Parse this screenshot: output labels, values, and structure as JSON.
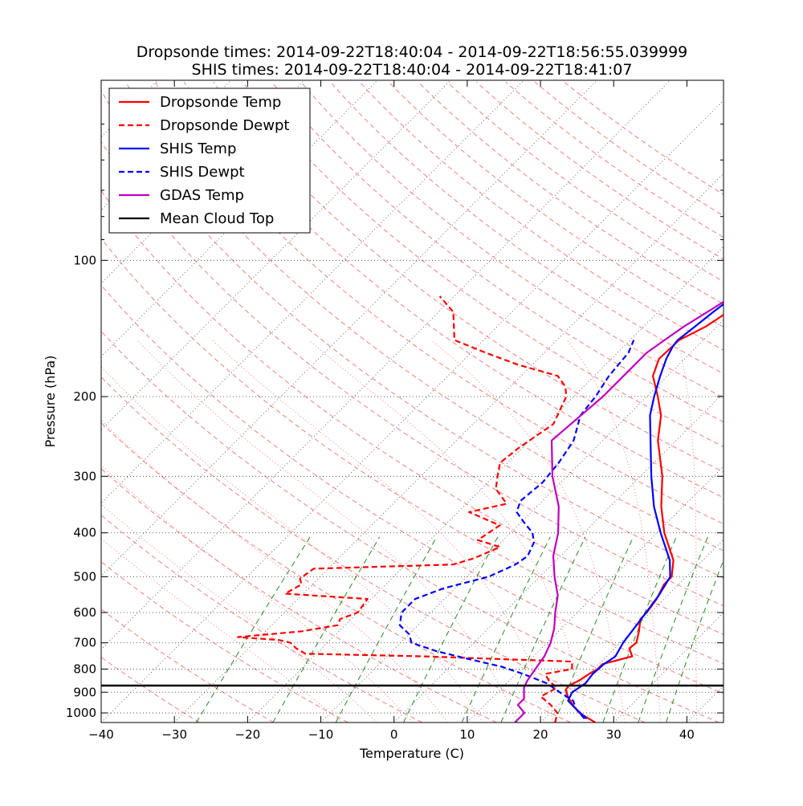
{
  "chart_data": {
    "type": "line",
    "subtype": "skew-t log-p",
    "title": "Dropsonde times: 2014-09-22T18:40:04 - 2014-09-22T18:56:55.039999",
    "subtitle": "SHIS times: 2014-09-22T18:40:04 - 2014-09-22T18:41:07",
    "xlabel": "Temperature (C)",
    "ylabel": "Pressure (hPa)",
    "xlim": [
      -40,
      45
    ],
    "ylim": [
      1050,
      40
    ],
    "x_ticks": [
      -40,
      -30,
      -20,
      -10,
      0,
      10,
      20,
      30,
      40
    ],
    "y_ticks": [
      100,
      200,
      300,
      400,
      500,
      600,
      700,
      800,
      900,
      1000
    ],
    "legend_position": "top-left",
    "background_lines": {
      "isotherms_color": "#444444",
      "dry_adiabats_color": "#f08080",
      "moist_adiabats_color": "#f08080",
      "mixing_ratio_color": "#228b22"
    },
    "series": [
      {
        "name": "Dropsonde Temp",
        "color": "#ff0000",
        "dash": "solid",
        "points": [
          [
            1050,
            27.5
          ],
          [
            1000,
            24.0
          ],
          [
            960,
            22.0
          ],
          [
            920,
            20.2
          ],
          [
            890,
            19.0
          ],
          [
            870,
            18.8
          ],
          [
            850,
            19.5
          ],
          [
            820,
            20.0
          ],
          [
            800,
            20.5
          ],
          [
            780,
            20.5
          ],
          [
            750,
            23.5
          ],
          [
            720,
            22.0
          ],
          [
            700,
            22.2
          ],
          [
            660,
            21.0
          ],
          [
            620,
            19.5
          ],
          [
            600,
            19.5
          ],
          [
            560,
            19.0
          ],
          [
            520,
            18.0
          ],
          [
            500,
            18.0
          ],
          [
            460,
            16.0
          ],
          [
            400,
            11.0
          ],
          [
            350,
            7.0
          ],
          [
            300,
            3.0
          ],
          [
            250,
            -2.5
          ],
          [
            220,
            -5.5
          ],
          [
            200,
            -8.5
          ],
          [
            180,
            -12.0
          ],
          [
            165,
            -13.5
          ],
          [
            150,
            -13.3
          ],
          [
            140,
            -11.5
          ],
          [
            130,
            -10.5
          ],
          [
            120,
            -13.2
          ],
          [
            112,
            -11.0
          ],
          [
            105,
            -8.0
          ],
          [
            100,
            -7.0
          ],
          [
            90,
            -5.8
          ],
          [
            80,
            -3.5
          ],
          [
            75,
            -2.0
          ]
        ]
      },
      {
        "name": "Dropsonde Dewpt",
        "color": "#ff0000",
        "dash": "dashed",
        "points": [
          [
            1050,
            22.0
          ],
          [
            1000,
            21.0
          ],
          [
            960,
            19.0
          ],
          [
            920,
            16.5
          ],
          [
            880,
            17.5
          ],
          [
            850,
            15.5
          ],
          [
            820,
            14.0
          ],
          [
            800,
            17.0
          ],
          [
            770,
            16.0
          ],
          [
            750,
            -5.0
          ],
          [
            740,
            -21.5
          ],
          [
            720,
            -23.5
          ],
          [
            700,
            -25.0
          ],
          [
            690,
            -27.0
          ],
          [
            680,
            -33.0
          ],
          [
            660,
            -25.0
          ],
          [
            640,
            -21.0
          ],
          [
            620,
            -21.5
          ],
          [
            600,
            -20.0
          ],
          [
            560,
            -20.5
          ],
          [
            545,
            -32.5
          ],
          [
            520,
            -31.5
          ],
          [
            505,
            -32.5
          ],
          [
            480,
            -32.0
          ],
          [
            470,
            -13.5
          ],
          [
            455,
            -11.5
          ],
          [
            430,
            -9.5
          ],
          [
            415,
            -13.5
          ],
          [
            400,
            -13.0
          ],
          [
            385,
            -12.5
          ],
          [
            360,
            -18.5
          ],
          [
            345,
            -14.5
          ],
          [
            320,
            -18.0
          ],
          [
            300,
            -19.5
          ],
          [
            280,
            -21.0
          ],
          [
            260,
            -20.5
          ],
          [
            230,
            -19.0
          ],
          [
            200,
            -21.0
          ],
          [
            190,
            -22.5
          ],
          [
            180,
            -25.0
          ],
          [
            170,
            -32.0
          ],
          [
            160,
            -38.0
          ],
          [
            150,
            -44.0
          ],
          [
            130,
            -48.0
          ],
          [
            120,
            -52.0
          ]
        ]
      },
      {
        "name": "SHIS Temp",
        "color": "#0000ff",
        "dash": "solid",
        "points": [
          [
            1030,
            25.8
          ],
          [
            980,
            23.0
          ],
          [
            940,
            20.8
          ],
          [
            900,
            20.2
          ],
          [
            860,
            20.8
          ],
          [
            820,
            20.5
          ],
          [
            780,
            20.7
          ],
          [
            750,
            21.2
          ],
          [
            700,
            20.4
          ],
          [
            600,
            19.4
          ],
          [
            550,
            18.8
          ],
          [
            500,
            17.8
          ],
          [
            460,
            15.5
          ],
          [
            400,
            10.5
          ],
          [
            350,
            6.0
          ],
          [
            300,
            1.5
          ],
          [
            250,
            -3.5
          ],
          [
            220,
            -7.0
          ],
          [
            200,
            -9.0
          ],
          [
            180,
            -11.0
          ],
          [
            165,
            -12.5
          ],
          [
            155,
            -13.3
          ],
          [
            150,
            -13.5
          ],
          [
            140,
            -13.0
          ],
          [
            130,
            -12.5
          ],
          [
            120,
            -11.8
          ],
          [
            110,
            -10.0
          ],
          [
            105,
            -8.5
          ],
          [
            100,
            -7.3
          ],
          [
            90,
            -4.5
          ],
          [
            80,
            -0.5
          ],
          [
            70,
            4.5
          ],
          [
            60,
            10.5
          ],
          [
            50,
            18.0
          ],
          [
            40,
            26.0
          ]
        ]
      },
      {
        "name": "SHIS Dewpt",
        "color": "#0000ff",
        "dash": "dashed",
        "points": [
          [
            1030,
            25.5
          ],
          [
            980,
            23.0
          ],
          [
            940,
            21.5
          ],
          [
            900,
            18.5
          ],
          [
            860,
            15.5
          ],
          [
            820,
            11.0
          ],
          [
            790,
            7.0
          ],
          [
            760,
            1.5
          ],
          [
            730,
            -4.0
          ],
          [
            700,
            -8.5
          ],
          [
            670,
            -10.0
          ],
          [
            640,
            -12.5
          ],
          [
            600,
            -14.0
          ],
          [
            560,
            -14.0
          ],
          [
            530,
            -11.5
          ],
          [
            500,
            -7.0
          ],
          [
            470,
            -5.0
          ],
          [
            450,
            -4.5
          ],
          [
            420,
            -5.5
          ],
          [
            400,
            -7.0
          ],
          [
            380,
            -9.5
          ],
          [
            360,
            -12.0
          ],
          [
            340,
            -13.0
          ],
          [
            310,
            -12.5
          ],
          [
            280,
            -13.0
          ],
          [
            250,
            -14.0
          ],
          [
            220,
            -16.5
          ],
          [
            200,
            -17.0
          ],
          [
            180,
            -18.0
          ],
          [
            160,
            -18.5
          ],
          [
            150,
            -19.5
          ]
        ]
      },
      {
        "name": "GDAS Temp",
        "color": "#bf00bf",
        "dash": "solid",
        "points": [
          [
            1050,
            16.5
          ],
          [
            1000,
            16.5
          ],
          [
            960,
            14.5
          ],
          [
            930,
            14.5
          ],
          [
            880,
            13.0
          ],
          [
            850,
            12.5
          ],
          [
            800,
            12.0
          ],
          [
            750,
            11.5
          ],
          [
            700,
            10.5
          ],
          [
            650,
            9.0
          ],
          [
            600,
            7.0
          ],
          [
            550,
            5.0
          ],
          [
            500,
            2.0
          ],
          [
            450,
            -1.0
          ],
          [
            400,
            -3.5
          ],
          [
            350,
            -7.0
          ],
          [
            300,
            -12.0
          ],
          [
            250,
            -17.0
          ],
          [
            200,
            -16.0
          ],
          [
            180,
            -16.0
          ],
          [
            160,
            -16.0
          ],
          [
            150,
            -15.3
          ],
          [
            140,
            -14.5
          ],
          [
            120,
            -12.0
          ],
          [
            110,
            -10.5
          ],
          [
            100,
            -8.0
          ],
          [
            90,
            -5.0
          ],
          [
            80,
            -1.0
          ],
          [
            70,
            5.0
          ],
          [
            60,
            12.0
          ],
          [
            50,
            20.0
          ],
          [
            40,
            27.0
          ]
        ]
      }
    ],
    "mean_cloud_top": {
      "name": "Mean Cloud Top",
      "color": "#000000",
      "pressure": 870
    }
  }
}
